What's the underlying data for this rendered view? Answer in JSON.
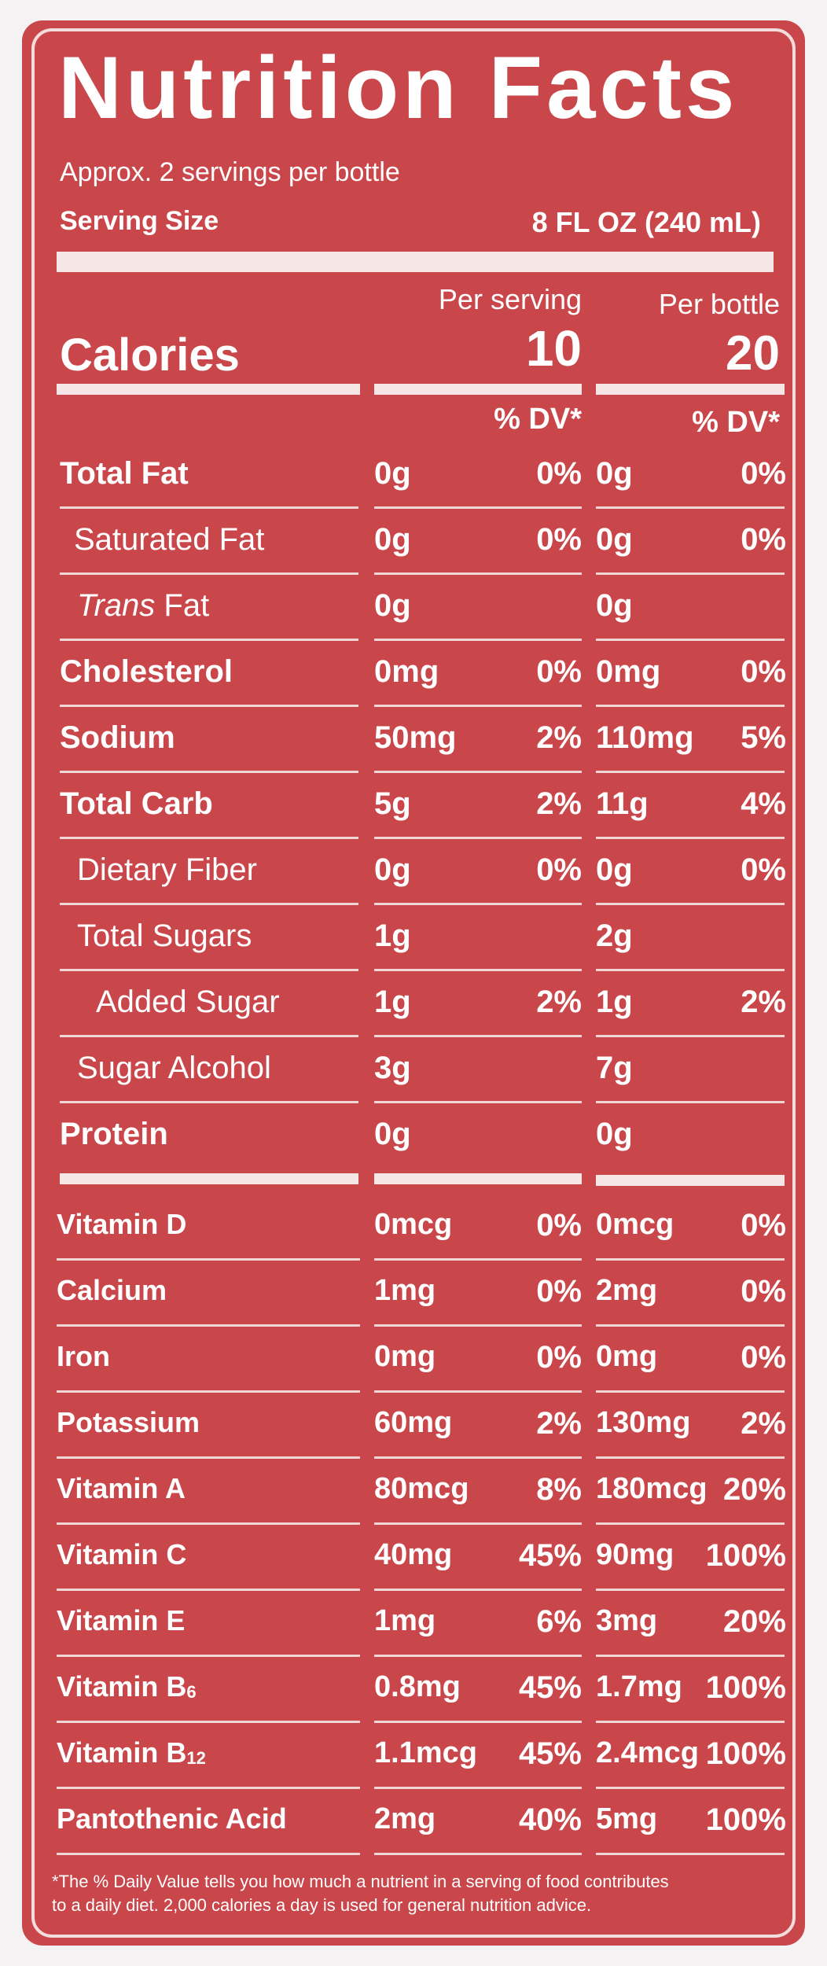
{
  "title": "Nutrition Facts",
  "servings_per_container": "Approx. 2 servings per bottle",
  "serving_size_label": "Serving Size",
  "serving_size_value": "8 FL OZ (240 mL)",
  "per_serving_label": "Per serving",
  "per_bottle_label": "Per bottle",
  "calories_label": "Calories",
  "calories_serving": "10",
  "calories_bottle": "20",
  "dv_header": "% DV*",
  "nutrients": [
    {
      "name": "Total Fat",
      "s_amt": "0g",
      "s_dv": "0%",
      "b_amt": "0g",
      "b_dv": "0%"
    },
    {
      "name": "Saturated Fat",
      "s_amt": "0g",
      "s_dv": "0%",
      "b_amt": "0g",
      "b_dv": "0%"
    },
    {
      "name_italic": "Trans",
      "name": "Fat",
      "s_amt": "0g",
      "s_dv": "",
      "b_amt": "0g",
      "b_dv": ""
    },
    {
      "name": "Cholesterol",
      "s_amt": "0mg",
      "s_dv": "0%",
      "b_amt": "0mg",
      "b_dv": "0%"
    },
    {
      "name": "Sodium",
      "s_amt": "50mg",
      "s_dv": "2%",
      "b_amt": "110mg",
      "b_dv": "5%"
    },
    {
      "name": "Total Carb",
      "s_amt": "5g",
      "s_dv": "2%",
      "b_amt": "11g",
      "b_dv": "4%"
    },
    {
      "name": "Dietary Fiber",
      "s_amt": "0g",
      "s_dv": "0%",
      "b_amt": "0g",
      "b_dv": "0%"
    },
    {
      "name": "Total Sugars",
      "s_amt": "1g",
      "s_dv": "",
      "b_amt": "2g",
      "b_dv": ""
    },
    {
      "name": "Added Sugar",
      "s_amt": "1g",
      "s_dv": "2%",
      "b_amt": "1g",
      "b_dv": "2%"
    },
    {
      "name": "Sugar Alcohol",
      "s_amt": "3g",
      "s_dv": "",
      "b_amt": "7g",
      "b_dv": ""
    },
    {
      "name": "Protein",
      "s_amt": "0g",
      "s_dv": "",
      "b_amt": "0g",
      "b_dv": ""
    }
  ],
  "vitamins": [
    {
      "name": "Vitamin D",
      "s_amt": "0mcg",
      "s_dv": "0%",
      "b_amt": "0mcg",
      "b_dv": "0%"
    },
    {
      "name": "Calcium",
      "s_amt": "1mg",
      "s_dv": "0%",
      "b_amt": "2mg",
      "b_dv": "0%"
    },
    {
      "name": "Iron",
      "s_amt": "0mg",
      "s_dv": "0%",
      "b_amt": "0mg",
      "b_dv": "0%"
    },
    {
      "name": "Potassium",
      "s_amt": "60mg",
      "s_dv": "2%",
      "b_amt": "130mg",
      "b_dv": "2%"
    },
    {
      "name": "Vitamin A",
      "s_amt": "80mcg",
      "s_dv": "8%",
      "b_amt": "180mcg",
      "b_dv": "20%"
    },
    {
      "name": "Vitamin C",
      "s_amt": "40mg",
      "s_dv": "45%",
      "b_amt": "90mg",
      "b_dv": "100%"
    },
    {
      "name": "Vitamin E",
      "s_amt": "1mg",
      "s_dv": "6%",
      "b_amt": "3mg",
      "b_dv": "20%"
    },
    {
      "name": "Vitamin B",
      "name_sub": "6",
      "s_amt": "0.8mg",
      "s_dv": "45%",
      "b_amt": "1.7mg",
      "b_dv": "100%"
    },
    {
      "name": "Vitamin B",
      "name_sub": "12",
      "s_amt": "1.1mcg",
      "s_dv": "45%",
      "b_amt": "2.4mcg",
      "b_dv": "100%"
    },
    {
      "name": "Pantothenic Acid",
      "s_amt": "2mg",
      "s_dv": "40%",
      "b_amt": "5mg",
      "b_dv": "100%"
    }
  ],
  "footnote_line1": "*The % Daily Value tells you how much a nutrient in a serving of food contributes",
  "footnote_line2": "to a daily diet. 2,000 calories a day is used for general nutrition advice.",
  "colors": {
    "label_red": "#c9464a",
    "text": "#ffffff"
  }
}
